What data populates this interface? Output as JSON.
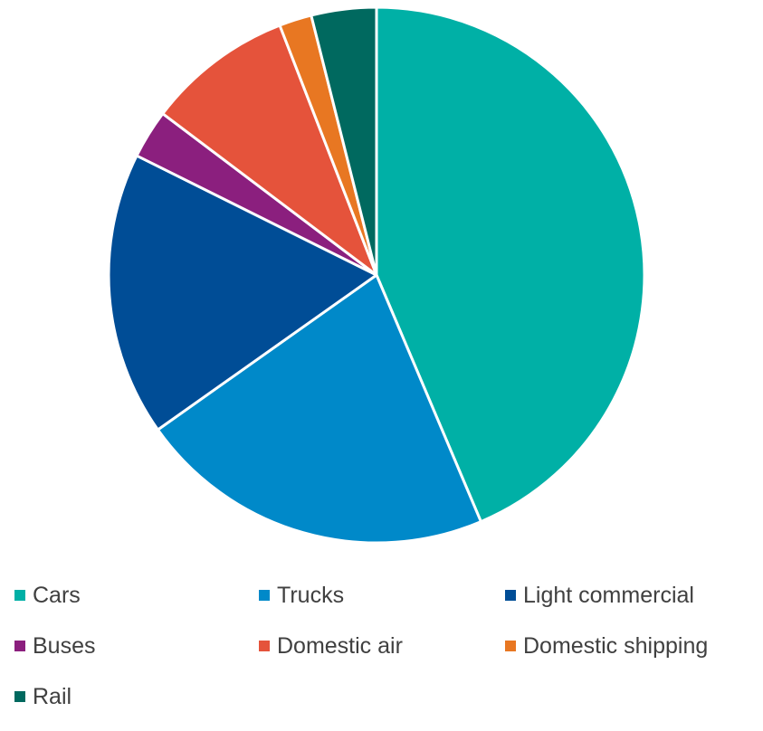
{
  "chart_data": {
    "type": "pie",
    "title": "",
    "legend_position": "bottom",
    "series": [
      {
        "categories": [
          "Cars",
          "Trucks",
          "Light commercial",
          "Buses",
          "Domestic air",
          "Domestic shipping",
          "Rail"
        ],
        "values": [
          44.5,
          22.0,
          17.5,
          3.0,
          9.0,
          2.0,
          4.0
        ],
        "colors": [
          "#00B0A6",
          "#0089C9",
          "#004D96",
          "#8B1F7E",
          "#E5533B",
          "#E87722",
          "#00695F"
        ]
      }
    ]
  }
}
